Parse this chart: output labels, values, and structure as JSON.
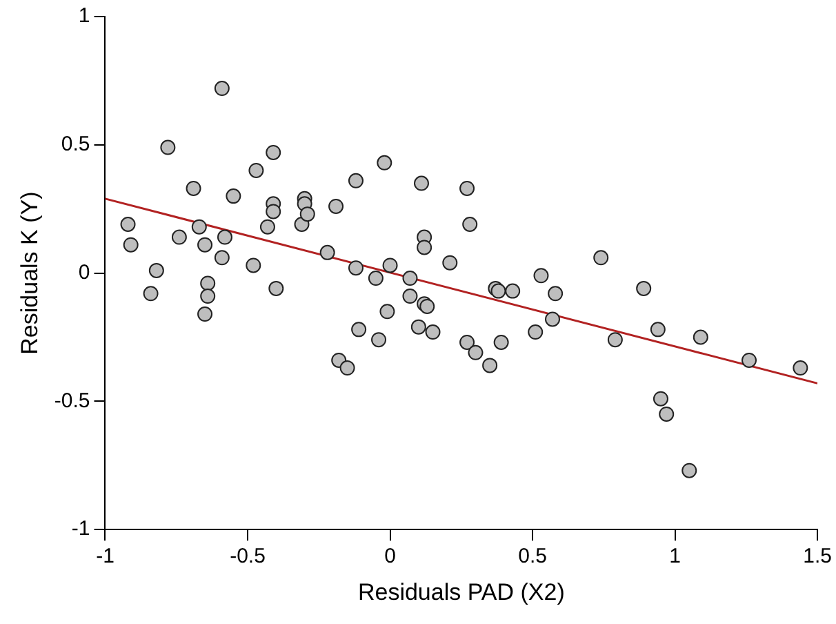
{
  "chart_data": {
    "type": "scatter",
    "xlabel": "Residuals PAD (X2)",
    "ylabel": "Residuals K (Y)",
    "xlim": [
      -1,
      1.5
    ],
    "ylim": [
      -1,
      1
    ],
    "xticks": [
      -1,
      -0.5,
      0,
      0.5,
      1,
      1.5
    ],
    "yticks": [
      -1,
      -0.5,
      0,
      0.5,
      1
    ],
    "grid": false,
    "legend": false,
    "marker": "circle",
    "series": [
      {
        "type": "scatter",
        "color": "#bebebe",
        "x": [
          -0.92,
          -0.91,
          -0.84,
          -0.82,
          -0.78,
          -0.74,
          -0.69,
          -0.67,
          -0.64,
          -0.64,
          -0.65,
          -0.65,
          -0.59,
          -0.59,
          -0.58,
          -0.55,
          -0.48,
          -0.47,
          -0.43,
          -0.41,
          -0.41,
          -0.41,
          -0.4,
          -0.31,
          -0.3,
          -0.3,
          -0.29,
          -0.22,
          -0.19,
          -0.18,
          -0.15,
          -0.12,
          -0.12,
          -0.11,
          -0.05,
          -0.04,
          -0.02,
          -0.01,
          0.0,
          0.07,
          0.07,
          0.1,
          0.11,
          0.12,
          0.12,
          0.12,
          0.13,
          0.15,
          0.21,
          0.27,
          0.27,
          0.28,
          0.3,
          0.35,
          0.37,
          0.38,
          0.39,
          0.43,
          0.51,
          0.53,
          0.57,
          0.58,
          0.74,
          0.79,
          0.89,
          0.94,
          0.95,
          0.97,
          1.05,
          1.09,
          1.26,
          1.44
        ],
        "values": [
          0.19,
          0.11,
          -0.08,
          0.01,
          0.49,
          0.14,
          0.33,
          0.18,
          -0.04,
          -0.09,
          -0.16,
          0.11,
          0.72,
          0.06,
          0.14,
          0.3,
          0.03,
          0.4,
          0.18,
          0.47,
          0.27,
          0.24,
          -0.06,
          0.19,
          0.29,
          0.27,
          0.23,
          0.08,
          0.26,
          -0.34,
          -0.37,
          0.36,
          0.02,
          -0.22,
          -0.02,
          -0.26,
          0.43,
          -0.15,
          0.03,
          -0.02,
          -0.09,
          -0.21,
          0.35,
          0.14,
          0.1,
          -0.12,
          -0.13,
          -0.23,
          0.04,
          0.33,
          -0.27,
          0.19,
          -0.31,
          -0.36,
          -0.06,
          -0.07,
          -0.27,
          -0.07,
          -0.23,
          -0.01,
          -0.18,
          -0.08,
          0.06,
          -0.26,
          -0.06,
          -0.22,
          -0.49,
          -0.55,
          -0.77,
          -0.25,
          -0.34,
          -0.37
        ]
      },
      {
        "type": "line",
        "color": "#b22222",
        "marker": "none",
        "x": [
          -1,
          1.5
        ],
        "values": [
          0.29,
          -0.43
        ]
      }
    ]
  }
}
